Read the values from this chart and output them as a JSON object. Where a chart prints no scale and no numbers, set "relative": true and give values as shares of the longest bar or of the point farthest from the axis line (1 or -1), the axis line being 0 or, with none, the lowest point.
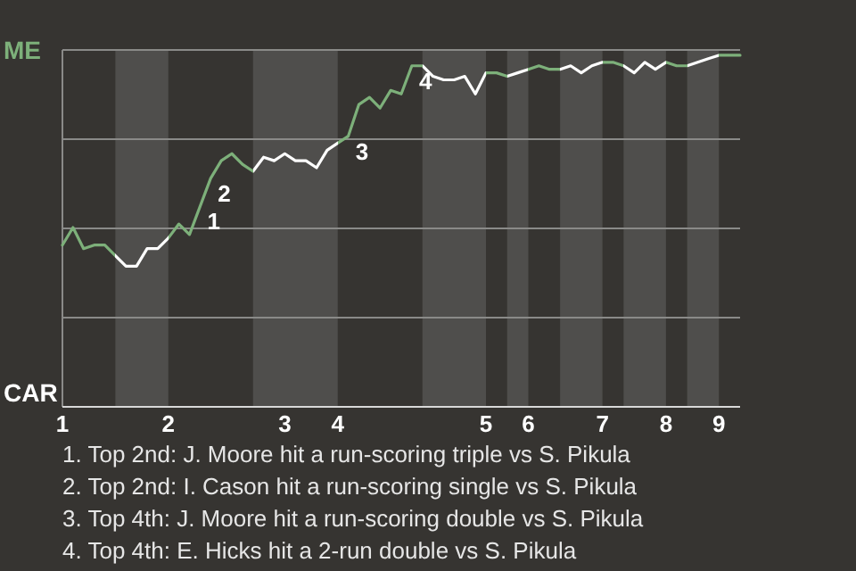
{
  "chart_data": {
    "type": "line",
    "relative": true,
    "categories": [
      "1",
      null,
      null,
      null,
      null,
      null,
      null,
      null,
      null,
      null,
      "2",
      null,
      null,
      null,
      null,
      null,
      null,
      null,
      null,
      null,
      null,
      "3",
      null,
      null,
      null,
      null,
      "4",
      null,
      null,
      null,
      null,
      null,
      null,
      null,
      null,
      null,
      null,
      null,
      null,
      null,
      "5",
      null,
      null,
      null,
      "6",
      null,
      null,
      null,
      null,
      null,
      null,
      "7",
      null,
      null,
      null,
      null,
      null,
      "8",
      null,
      null,
      null,
      null,
      "9",
      null,
      null
    ],
    "series": [
      {
        "color": "#7db07a",
        "values": [
          0.46,
          0.51,
          0.45,
          0.46,
          0.46,
          0.43,
          0.4,
          0.4,
          0.45,
          0.45,
          0.48,
          0.52,
          0.49,
          0.57,
          0.65,
          0.7,
          0.72,
          0.69,
          0.67,
          0.71,
          0.7,
          0.72,
          0.7,
          0.7,
          0.68,
          0.73,
          0.75,
          0.77,
          0.86,
          0.88,
          0.85,
          0.9,
          0.89,
          0.97,
          0.97,
          0.94,
          0.93,
          0.93,
          0.94,
          0.89,
          0.95,
          0.95,
          0.94,
          0.95,
          0.96,
          0.97,
          0.96,
          0.96,
          0.97,
          0.95,
          0.97,
          0.98,
          0.98,
          0.97,
          0.95,
          0.98,
          0.96,
          0.98,
          0.97,
          0.97,
          0.98,
          0.99,
          1.0,
          1.0,
          1.0
        ],
        "colors": [
          "#7db07a",
          "#7db07a",
          "#7db07a",
          "#7db07a",
          "#7db07a",
          "#ffffff",
          "#ffffff",
          "#ffffff",
          "#ffffff",
          "#ffffff",
          "#7db07a",
          "#7db07a",
          "#7db07a",
          "#7db07a",
          "#7db07a",
          "#7db07a",
          "#7db07a",
          "#7db07a",
          "#ffffff",
          "#ffffff",
          "#ffffff",
          "#ffffff",
          "#ffffff",
          "#ffffff",
          "#ffffff",
          "#ffffff",
          "#7db07a",
          "#7db07a",
          "#7db07a",
          "#7db07a",
          "#7db07a",
          "#7db07a",
          "#7db07a",
          "#7db07a",
          "#ffffff",
          "#ffffff",
          "#ffffff",
          "#ffffff",
          "#ffffff",
          "#ffffff",
          "#7db07a",
          "#7db07a",
          "#ffffff",
          "#ffffff",
          "#7db07a",
          "#7db07a",
          "#7db07a",
          "#ffffff",
          "#ffffff",
          "#ffffff",
          "#ffffff",
          "#7db07a",
          "#7db07a",
          "#ffffff",
          "#ffffff",
          "#ffffff",
          "#ffffff",
          "#7db07a",
          "#7db07a",
          "#ffffff",
          "#ffffff",
          "#ffffff",
          "#7db07a",
          "#7db07a",
          "#7db07a"
        ]
      }
    ],
    "grid": "y",
    "annotations": [
      "ME",
      "CAR",
      "1",
      "2",
      "3",
      "4",
      "1. Top 2nd: J. Moore hit a run-scoring triple vs S. Pikula",
      "2. Top 2nd: I. Cason hit a run-scoring single vs S. Pikula",
      "3. Top 4th: J. Moore hit a run-scoring double vs S. Pikula",
      "4. Top 4th: E. Hicks hit a 2-run double vs S. Pikula"
    ]
  }
}
